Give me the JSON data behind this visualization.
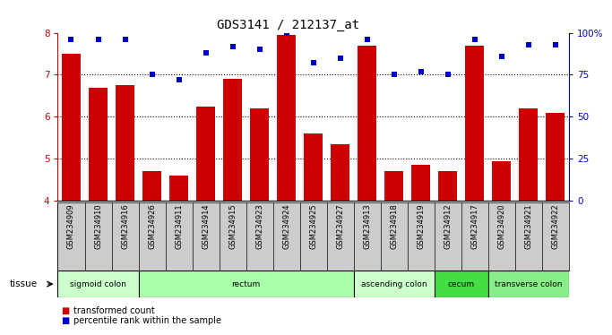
{
  "title": "GDS3141 / 212137_at",
  "samples": [
    "GSM234909",
    "GSM234910",
    "GSM234916",
    "GSM234926",
    "GSM234911",
    "GSM234914",
    "GSM234915",
    "GSM234923",
    "GSM234924",
    "GSM234925",
    "GSM234927",
    "GSM234913",
    "GSM234918",
    "GSM234919",
    "GSM234912",
    "GSM234917",
    "GSM234920",
    "GSM234921",
    "GSM234922"
  ],
  "transformed_count": [
    7.5,
    6.7,
    6.75,
    4.7,
    4.6,
    6.25,
    6.9,
    6.2,
    7.95,
    5.6,
    5.35,
    7.7,
    4.7,
    4.85,
    4.7,
    7.7,
    4.95,
    6.2,
    6.1
  ],
  "percentile_rank": [
    96,
    96,
    96,
    75,
    72,
    88,
    92,
    90,
    100,
    82,
    85,
    96,
    75,
    77,
    75,
    96,
    86,
    93,
    93
  ],
  "ylim_left": [
    4,
    8
  ],
  "ylim_right": [
    0,
    100
  ],
  "yticks_left": [
    4,
    5,
    6,
    7,
    8
  ],
  "yticks_right": [
    0,
    25,
    50,
    75,
    100
  ],
  "bar_color": "#cc0000",
  "dot_color": "#0000cc",
  "tissue_groups": [
    {
      "label": "sigmoid colon",
      "start": 0,
      "end": 3,
      "color": "#ccffcc"
    },
    {
      "label": "rectum",
      "start": 3,
      "end": 11,
      "color": "#aaffaa"
    },
    {
      "label": "ascending colon",
      "start": 11,
      "end": 14,
      "color": "#ccffcc"
    },
    {
      "label": "cecum",
      "start": 14,
      "end": 16,
      "color": "#44dd44"
    },
    {
      "label": "transverse colon",
      "start": 16,
      "end": 19,
      "color": "#88ee88"
    }
  ],
  "right_axis_color": "#0000cc",
  "left_axis_color": "#cc0000",
  "legend_bar_label": "transformed count",
  "legend_dot_label": "percentile rank within the sample",
  "tissue_label": "tissue",
  "xticklabel_bg": "#cccccc"
}
